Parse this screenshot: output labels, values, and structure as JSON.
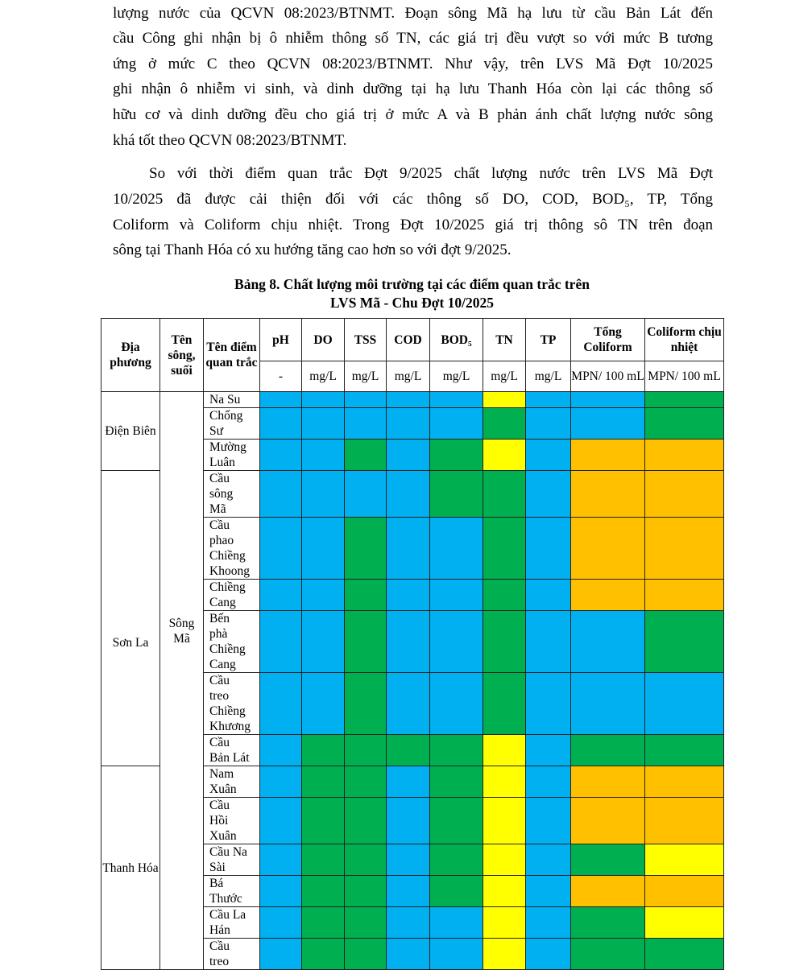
{
  "paragraph1": [
    "lượng nước của QCVN 08:2023/BTNMT. Đoạn sông Mã hạ lưu từ cầu Bản Lát đến",
    "cầu Công ghi nhận bị ô nhiễm thông số TN, các giá trị đều vượt so với mức B tương",
    "ứng ở mức C theo QCVN 08:2023/BTNMT. Như vậy, trên LVS Mã Đợt 10/2025",
    "ghi nhận ô nhiễm vi sinh, và dinh dưỡng tại hạ lưu Thanh Hóa còn lại các thông số",
    "hữu cơ và dinh dưỡng đều cho giá trị ở mức A và B phản ánh chất lượng nước sông",
    "khá tốt theo QCVN 08:2023/BTNMT."
  ],
  "paragraph2": [
    "So với thời điểm quan trắc Đợt 9/2025 chất lượng nước trên LVS Mã Đợt",
    "10/2025 đã được cải thiện đối với các thông số DO, COD, BOD₅, TP, Tổng",
    "Coliform và Coliform chịu nhiệt. Trong Đợt 10/2025 giá trị thông sô TN trên đoạn",
    "sông tại Thanh Hóa có xu hướng tăng cao hơn so với đợt 9/2025."
  ],
  "caption": [
    "Bảng 8. Chất lượng môi trường tại các điểm quan trắc trên",
    "LVS Mã - Chu Đợt 10/2025"
  ],
  "table": {
    "headers": {
      "locality": "Địa phương",
      "river": "Tên sông, suối",
      "station": "Tên điểm quan trắc",
      "params": [
        "pH",
        "DO",
        "TSS",
        "COD",
        "BOD₅",
        "TN",
        "TP",
        "Tổng Coliform",
        "Coliform chịu nhiệt"
      ],
      "units": [
        "-",
        "mg/L",
        "mg/L",
        "mg/L",
        "mg/L",
        "mg/L",
        "mg/L",
        "MPN/ 100 mL",
        "MPN/ 100 mL"
      ]
    },
    "river": "Sông Mã",
    "localities": [
      "Điện Biên",
      "Sơn La",
      "Thanh Hóa"
    ],
    "legend_colors": {
      "B": "#00b0f0",
      "G": "#00b050",
      "Y": "#ffff00",
      "O": "#ffc000"
    },
    "rows": [
      {
        "locality": 0,
        "name": "Na Su",
        "levels": "BBBBBYBBG"
      },
      {
        "locality": 0,
        "name": "Chống\nSư",
        "levels": "BBBBBGBBG"
      },
      {
        "locality": 0,
        "name": "Mường\nLuân",
        "levels": "BBGBGYBOO"
      },
      {
        "locality": 1,
        "name": "Cầu\nsông\nMã",
        "levels": "BBBBGGBOO"
      },
      {
        "locality": 1,
        "name": "Cầu\nphao\nChiềng\nKhoong",
        "levels": "BBGBBGBOO"
      },
      {
        "locality": 1,
        "name": "Chiềng\nCang",
        "levels": "BBGBBGBOO"
      },
      {
        "locality": 1,
        "name": "Bến\nphà\nChiềng\nCang",
        "levels": "BBGBBGBBG"
      },
      {
        "locality": 1,
        "name": "Cầu\ntreo\nChiềng\nKhương",
        "levels": "BBGBBGBBB"
      },
      {
        "locality": 1,
        "name": "Cầu\nBản Lát",
        "levels": "BGGGGYBGG"
      },
      {
        "locality": 2,
        "name": "Nam\nXuân",
        "levels": "BGGBGYBOO"
      },
      {
        "locality": 2,
        "name": "Cầu\nHồi\nXuân",
        "levels": "BGGBGYBOO"
      },
      {
        "locality": 2,
        "name": "Cầu Na\nSài",
        "levels": "BGGBGYBGY"
      },
      {
        "locality": 2,
        "name": "Bá\nThước",
        "levels": "BGGBGYBOO"
      },
      {
        "locality": 2,
        "name": "Cầu La\nHán",
        "levels": "BGGBBYBGY"
      },
      {
        "locality": 2,
        "name": "Cầu\ntreo",
        "levels": "BGGBBYBGG"
      }
    ]
  }
}
